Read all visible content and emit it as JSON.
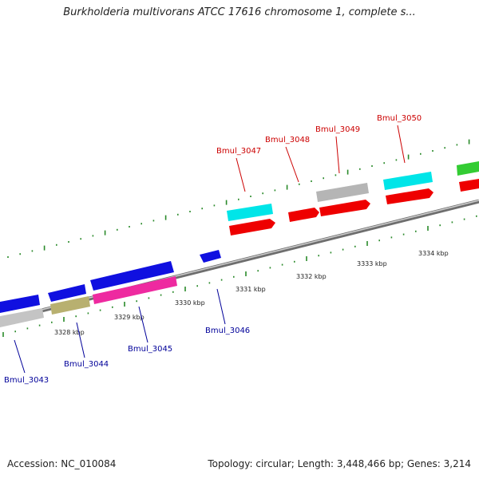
{
  "title": "Burkholderia multivorans ATCC 17616 chromosome 1, complete s...",
  "footer": {
    "accession": "Accession: NC_010084",
    "topology": "Topology: circular; Length: 3,448,466 bp; Genes: 3,214"
  },
  "colors": {
    "forward_label": "#cc0000",
    "reverse_label": "#000099",
    "tick": "#2a8a2a",
    "backbone": "#8c8c8c"
  },
  "position_ticks": [
    "3328 kbp",
    "3329 kbp",
    "3330 kbp",
    "3331 kbp",
    "3332 kbp",
    "3333 kbp",
    "3334 kbp"
  ],
  "gene_labels": {
    "forward": [
      "Bmul_3047",
      "Bmul_3048",
      "Bmul_3049",
      "Bmul_3050"
    ],
    "reverse": [
      "Bmul_3043",
      "Bmul_3044",
      "Bmul_3045",
      "Bmul_3046"
    ]
  }
}
